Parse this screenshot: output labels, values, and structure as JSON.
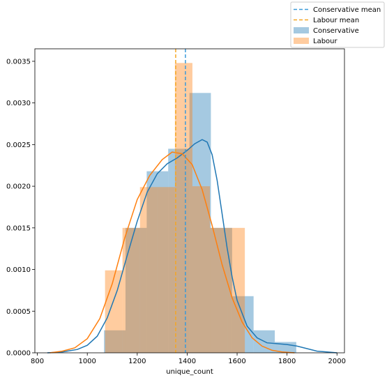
{
  "chart_data": {
    "type": "bar",
    "title": "",
    "xlabel": "unique_count",
    "ylabel": "",
    "xlim": [
      790,
      2030
    ],
    "ylim": [
      0,
      0.00365
    ],
    "xticks": [
      800,
      1000,
      1200,
      1400,
      1600,
      1800,
      2000
    ],
    "yticks": [
      0.0,
      0.0005,
      0.001,
      0.0015,
      0.002,
      0.0025,
      0.003,
      0.0035
    ],
    "ytick_labels": [
      "0.0000",
      "0.0005",
      "0.0010",
      "0.0015",
      "0.0020",
      "0.0025",
      "0.0030",
      "0.0035"
    ],
    "grid": false,
    "legend_position": "top-right-outside",
    "series": [
      {
        "name": "Conservative",
        "color": "#1f77b4",
        "hist": {
          "edges": [
            1067,
            1153,
            1238,
            1324,
            1409,
            1495,
            1580,
            1666,
            1751,
            1837
          ],
          "values": [
            0.00027,
            0.0015,
            0.00218,
            0.00245,
            0.00312,
            0.0015,
            0.00068,
            0.00027,
            0.00013
          ]
        },
        "kde": {
          "x": [
            840,
            900,
            960,
            1000,
            1040,
            1080,
            1120,
            1160,
            1200,
            1240,
            1280,
            1320,
            1360,
            1400,
            1430,
            1460,
            1480,
            1500,
            1520,
            1540,
            1560,
            1580,
            1600,
            1640,
            1680,
            1720,
            1760,
            1800,
            1840,
            1880,
            1920,
            1960,
            2000
          ],
          "y": [
            0.0,
            1e-05,
            4e-05,
            9e-05,
            0.0002,
            0.00042,
            0.00075,
            0.00117,
            0.00158,
            0.00193,
            0.00215,
            0.00227,
            0.00234,
            0.00243,
            0.00251,
            0.00256,
            0.00253,
            0.00238,
            0.00207,
            0.00167,
            0.00126,
            0.00091,
            0.00063,
            0.00032,
            0.00018,
            0.00012,
            0.00011,
            0.0001,
            8e-05,
            5e-05,
            2e-05,
            1e-05,
            0.0
          ]
        },
        "mean": 1393
      },
      {
        "name": "Labour",
        "color": "#ff7f0e",
        "hist": {
          "edges": [
            1071,
            1141,
            1211,
            1281,
            1351,
            1421,
            1491,
            1561,
            1631
          ],
          "values": [
            0.00099,
            0.0015,
            0.00199,
            0.00199,
            0.00348,
            0.002,
            0.0015,
            0.0015
          ]
        },
        "kde": {
          "x": [
            850,
            900,
            950,
            1000,
            1050,
            1100,
            1150,
            1200,
            1250,
            1300,
            1340,
            1380,
            1420,
            1460,
            1500,
            1540,
            1580,
            1620,
            1660,
            1700,
            1740,
            1780,
            1830
          ],
          "y": [
            0.0,
            2e-05,
            6e-05,
            0.00017,
            0.00041,
            0.00083,
            0.00138,
            0.00184,
            0.00213,
            0.00232,
            0.00241,
            0.00239,
            0.00226,
            0.00196,
            0.00153,
            0.00106,
            0.00066,
            0.00037,
            0.00018,
            8e-05,
            3e-05,
            1e-05,
            0.0
          ]
        },
        "mean": 1354
      }
    ],
    "legend": {
      "conservative_mean_label": "Conservative mean",
      "labour_mean_label": "Labour mean",
      "conservative_label": "Conservative",
      "labour_label": "Labour"
    },
    "mean_line_colors": {
      "conservative": "#3a9ad9",
      "labour": "#f5a623"
    }
  }
}
